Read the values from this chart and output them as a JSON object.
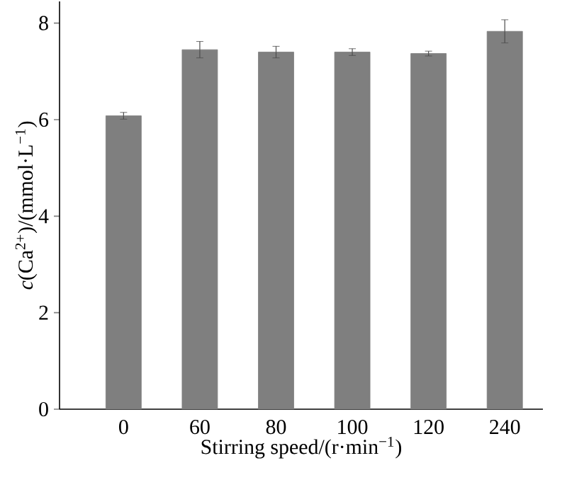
{
  "chart_data": {
    "type": "bar",
    "xlabel": "Stirring speed/(r·min$^{−1}$)",
    "ylabel": "*c*(Ca$^{2+}$)/(mmol·L$^{−1}$)",
    "categories": [
      "0",
      "60",
      "80",
      "100",
      "120",
      "240"
    ],
    "values": [
      6.08,
      7.45,
      7.4,
      7.4,
      7.37,
      7.83
    ],
    "errors": [
      0.07,
      0.17,
      0.12,
      0.07,
      0.05,
      0.24
    ],
    "color": "#7f7f7f",
    "ylim": [
      0,
      8.45
    ],
    "yticks": [
      0,
      2,
      4,
      6,
      8
    ],
    "grid": false
  }
}
